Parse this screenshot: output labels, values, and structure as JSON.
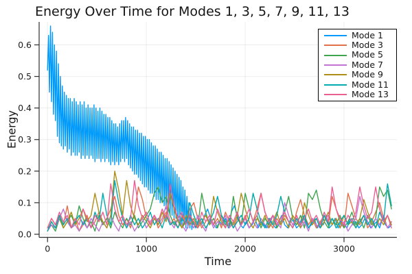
{
  "chart_data": {
    "type": "line",
    "title": "Energy Over Time for Modes 1, 3, 5, 7, 9, 11, 13",
    "xlabel": "Time",
    "ylabel": "Energy",
    "xlim": [
      -85,
      3535
    ],
    "ylim": [
      -0.0098,
      0.6727
    ],
    "xticks": [
      0,
      1000,
      2000,
      3000
    ],
    "xtick_labels": [
      "0",
      "1000",
      "2000",
      "3000"
    ],
    "yticks": [
      0.0,
      0.1,
      0.2,
      0.3,
      0.4,
      0.5,
      0.6
    ],
    "ytick_labels": [
      "0.0",
      "0.1",
      "0.2",
      "0.3",
      "0.4",
      "0.5",
      "0.6"
    ],
    "grid": true,
    "grid_color": "rgba(0,0,0,0.07)",
    "axis_color": "#2d2d2d",
    "background_color": "#ffffff",
    "legend": {
      "position": "top-right",
      "border_color": "#000000",
      "background": "#ffffff",
      "entries": [
        "Mode 1",
        "Mode 3",
        "Mode 5",
        "Mode 7",
        "Mode 9",
        "Mode 11",
        "Mode 13"
      ]
    },
    "series": [
      {
        "name": "Mode 1",
        "color": "#009AFA",
        "segments": [
          {
            "t0": 0,
            "dt": 10,
            "values": [
              0.52,
              0.63,
              0.45,
              0.66,
              0.42,
              0.64,
              0.38,
              0.6,
              0.36,
              0.58,
              0.31,
              0.54,
              0.29,
              0.5,
              0.28,
              0.47,
              0.27,
              0.45,
              0.28,
              0.44,
              0.26,
              0.43,
              0.27,
              0.43,
              0.25,
              0.42,
              0.26,
              0.43,
              0.25,
              0.42,
              0.25,
              0.41,
              0.26,
              0.42,
              0.24,
              0.41,
              0.25,
              0.42,
              0.24,
              0.4,
              0.25,
              0.41,
              0.24,
              0.4,
              0.25,
              0.4,
              0.24,
              0.41,
              0.23,
              0.4,
              0.24,
              0.39,
              0.24,
              0.4,
              0.23,
              0.39,
              0.24,
              0.38,
              0.23,
              0.38,
              0.24,
              0.37,
              0.23,
              0.37,
              0.22,
              0.36,
              0.23,
              0.35,
              0.22,
              0.35,
              0.23,
              0.34,
              0.22,
              0.35,
              0.23,
              0.36,
              0.24,
              0.36,
              0.23,
              0.37,
              0.24,
              0.36,
              0.22,
              0.35,
              0.21,
              0.34,
              0.2,
              0.34,
              0.19,
              0.33,
              0.19,
              0.33,
              0.18,
              0.32,
              0.17,
              0.32,
              0.16,
              0.31,
              0.15,
              0.31,
              0.15,
              0.3,
              0.14,
              0.3,
              0.13,
              0.29,
              0.13,
              0.28,
              0.12,
              0.28,
              0.11,
              0.27,
              0.11,
              0.26,
              0.1,
              0.26,
              0.1,
              0.25,
              0.09,
              0.24,
              0.08,
              0.24,
              0.07,
              0.23,
              0.06,
              0.22,
              0.06,
              0.21,
              0.05,
              0.2,
              0.05,
              0.19,
              0.04,
              0.18,
              0.04,
              0.17,
              0.03,
              0.15,
              0.03,
              0.14,
              0.02,
              0.12,
              0.02,
              0.1,
              0.02,
              0.08,
              0.015
            ]
          },
          {
            "t0": 1470,
            "dt": 30,
            "values": [
              0.04,
              0.02,
              0.05,
              0.03,
              0.06,
              0.08,
              0.05,
              0.03,
              0.02,
              0.04,
              0.03,
              0.05,
              0.02,
              0.07,
              0.09,
              0.06,
              0.03,
              0.02,
              0.04,
              0.02,
              0.03,
              0.05,
              0.02,
              0.04,
              0.03,
              0.02,
              0.05,
              0.03,
              0.02,
              0.04,
              0.06,
              0.03,
              0.02,
              0.05,
              0.04,
              0.02,
              0.03,
              0.06,
              0.04,
              0.02,
              0.03,
              0.05,
              0.02,
              0.04,
              0.03,
              0.06,
              0.02,
              0.03,
              0.05,
              0.02,
              0.04,
              0.03,
              0.02,
              0.05,
              0.03,
              0.04,
              0.02,
              0.03,
              0.05,
              0.04,
              0.02,
              0.03,
              0.04,
              0.02,
              0.05,
              0.03,
              0.02,
              0.03
            ]
          }
        ]
      },
      {
        "name": "Mode 3",
        "color": "#E26F47",
        "segments": [
          {
            "t0": 0,
            "dt": 40,
            "values": [
              0.01,
              0.04,
              0.02,
              0.06,
              0.03,
              0.09,
              0.02,
              0.05,
              0.01,
              0.03,
              0.06,
              0.02,
              0.04,
              0.07,
              0.03,
              0.05,
              0.08,
              0.12,
              0.06,
              0.03,
              0.05,
              0.02,
              0.07,
              0.15,
              0.11,
              0.05,
              0.03,
              0.06,
              0.02,
              0.04,
              0.07,
              0.03,
              0.05,
              0.02,
              0.06,
              0.03,
              0.08,
              0.1,
              0.05,
              0.02,
              0.04,
              0.06,
              0.03,
              0.05,
              0.02,
              0.07,
              0.04,
              0.02,
              0.05,
              0.03,
              0.06,
              0.02,
              0.04,
              0.08,
              0.13,
              0.07,
              0.04,
              0.02,
              0.05,
              0.03,
              0.06,
              0.04,
              0.02,
              0.07,
              0.11,
              0.06,
              0.03,
              0.05,
              0.02,
              0.04,
              0.06,
              0.03,
              0.12,
              0.08,
              0.04,
              0.02,
              0.13,
              0.09,
              0.05,
              0.03,
              0.06,
              0.02,
              0.04,
              0.07,
              0.1,
              0.05,
              0.02,
              0.04
            ]
          }
        ]
      },
      {
        "name": "Mode 5",
        "color": "#3EA44E",
        "segments": [
          {
            "t0": 0,
            "dt": 40,
            "values": [
              0.02,
              0.03,
              0.01,
              0.05,
              0.02,
              0.04,
              0.06,
              0.03,
              0.09,
              0.05,
              0.02,
              0.04,
              0.01,
              0.06,
              0.03,
              0.05,
              0.02,
              0.07,
              0.04,
              0.02,
              0.05,
              0.03,
              0.06,
              0.02,
              0.04,
              0.06,
              0.08,
              0.13,
              0.15,
              0.1,
              0.12,
              0.06,
              0.03,
              0.05,
              0.02,
              0.04,
              0.06,
              0.03,
              0.02,
              0.13,
              0.07,
              0.03,
              0.05,
              0.02,
              0.06,
              0.04,
              0.02,
              0.12,
              0.05,
              0.03,
              0.13,
              0.08,
              0.04,
              0.06,
              0.02,
              0.05,
              0.03,
              0.06,
              0.02,
              0.04,
              0.07,
              0.12,
              0.05,
              0.03,
              0.06,
              0.02,
              0.13,
              0.11,
              0.14,
              0.08,
              0.04,
              0.02,
              0.05,
              0.03,
              0.06,
              0.02,
              0.04,
              0.07,
              0.03,
              0.05,
              0.02,
              0.06,
              0.03,
              0.05,
              0.15,
              0.12,
              0.14,
              0.08
            ]
          }
        ]
      },
      {
        "name": "Mode 7",
        "color": "#C371D2",
        "segments": [
          {
            "t0": 0,
            "dt": 40,
            "values": [
              0.01,
              0.03,
              0.02,
              0.05,
              0.08,
              0.04,
              0.02,
              0.03,
              0.01,
              0.04,
              0.02,
              0.05,
              0.03,
              0.01,
              0.04,
              0.02,
              0.06,
              0.03,
              0.01,
              0.05,
              0.02,
              0.04,
              0.01,
              0.03,
              0.05,
              0.02,
              0.04,
              0.06,
              0.03,
              0.05,
              0.09,
              0.04,
              0.02,
              0.05,
              0.03,
              0.01,
              0.04,
              0.02,
              0.06,
              0.03,
              0.01,
              0.05,
              0.02,
              0.04,
              0.03,
              0.06,
              0.02,
              0.04,
              0.01,
              0.03,
              0.05,
              0.02,
              0.04,
              0.02,
              0.05,
              0.03,
              0.02,
              0.06,
              0.04,
              0.02,
              0.1,
              0.06,
              0.03,
              0.05,
              0.02,
              0.04,
              0.01,
              0.05,
              0.03,
              0.02,
              0.04,
              0.06,
              0.03,
              0.05,
              0.02,
              0.04,
              0.01,
              0.03,
              0.05,
              0.12,
              0.07,
              0.04,
              0.02,
              0.05,
              0.03,
              0.06,
              0.02,
              0.04
            ]
          }
        ]
      },
      {
        "name": "Mode 9",
        "color": "#AC8E18",
        "segments": [
          {
            "t0": 0,
            "dt": 40,
            "values": [
              0.02,
              0.05,
              0.03,
              0.06,
              0.02,
              0.04,
              0.07,
              0.03,
              0.05,
              0.08,
              0.04,
              0.06,
              0.13,
              0.07,
              0.04,
              0.02,
              0.06,
              0.2,
              0.14,
              0.06,
              0.17,
              0.09,
              0.05,
              0.03,
              0.06,
              0.04,
              0.02,
              0.05,
              0.03,
              0.07,
              0.04,
              0.13,
              0.08,
              0.04,
              0.02,
              0.06,
              0.03,
              0.05,
              0.02,
              0.04,
              0.06,
              0.03,
              0.12,
              0.07,
              0.04,
              0.02,
              0.05,
              0.03,
              0.06,
              0.13,
              0.08,
              0.04,
              0.02,
              0.05,
              0.03,
              0.06,
              0.02,
              0.04,
              0.07,
              0.03,
              0.05,
              0.02,
              0.06,
              0.04,
              0.02,
              0.1,
              0.06,
              0.03,
              0.05,
              0.02,
              0.04,
              0.07,
              0.03,
              0.05,
              0.02,
              0.06,
              0.03,
              0.04,
              0.02,
              0.05,
              0.11,
              0.07,
              0.04,
              0.02,
              0.05,
              0.03,
              0.06,
              0.03
            ]
          }
        ]
      },
      {
        "name": "Mode 11",
        "color": "#00AAAE",
        "segments": [
          {
            "t0": 0,
            "dt": 40,
            "values": [
              0.01,
              0.04,
              0.02,
              0.06,
              0.03,
              0.05,
              0.02,
              0.04,
              0.06,
              0.03,
              0.05,
              0.02,
              0.07,
              0.04,
              0.13,
              0.06,
              0.03,
              0.17,
              0.1,
              0.05,
              0.02,
              0.06,
              0.03,
              0.05,
              0.02,
              0.04,
              0.07,
              0.03,
              0.05,
              0.02,
              0.06,
              0.03,
              0.04,
              0.02,
              0.05,
              0.03,
              0.1,
              0.06,
              0.03,
              0.05,
              0.02,
              0.04,
              0.07,
              0.12,
              0.06,
              0.03,
              0.05,
              0.02,
              0.04,
              0.06,
              0.03,
              0.05,
              0.13,
              0.08,
              0.04,
              0.02,
              0.05,
              0.03,
              0.06,
              0.12,
              0.07,
              0.04,
              0.02,
              0.05,
              0.03,
              0.06,
              0.02,
              0.04,
              0.05,
              0.02,
              0.06,
              0.03,
              0.05,
              0.02,
              0.04,
              0.06,
              0.03,
              0.05,
              0.02,
              0.04,
              0.06,
              0.03,
              0.05,
              0.02,
              0.07,
              0.04,
              0.16,
              0.09
            ]
          }
        ]
      },
      {
        "name": "Mode 13",
        "color": "#ED5E93",
        "segments": [
          {
            "t0": 0,
            "dt": 40,
            "values": [
              0.02,
              0.05,
              0.03,
              0.07,
              0.04,
              0.06,
              0.02,
              0.05,
              0.03,
              0.08,
              0.05,
              0.02,
              0.06,
              0.04,
              0.07,
              0.03,
              0.16,
              0.08,
              0.04,
              0.06,
              0.03,
              0.05,
              0.17,
              0.09,
              0.05,
              0.07,
              0.03,
              0.06,
              0.04,
              0.08,
              0.05,
              0.16,
              0.09,
              0.05,
              0.07,
              0.03,
              0.06,
              0.04,
              0.02,
              0.07,
              0.04,
              0.06,
              0.03,
              0.08,
              0.05,
              0.02,
              0.06,
              0.04,
              0.07,
              0.03,
              0.05,
              0.08,
              0.04,
              0.06,
              0.13,
              0.07,
              0.04,
              0.06,
              0.03,
              0.05,
              0.07,
              0.04,
              0.02,
              0.06,
              0.03,
              0.05,
              0.08,
              0.04,
              0.06,
              0.03,
              0.07,
              0.04,
              0.15,
              0.08,
              0.05,
              0.03,
              0.06,
              0.04,
              0.07,
              0.15,
              0.09,
              0.05,
              0.07,
              0.15,
              0.08,
              0.04,
              0.06,
              0.02
            ]
          }
        ]
      }
    ]
  }
}
